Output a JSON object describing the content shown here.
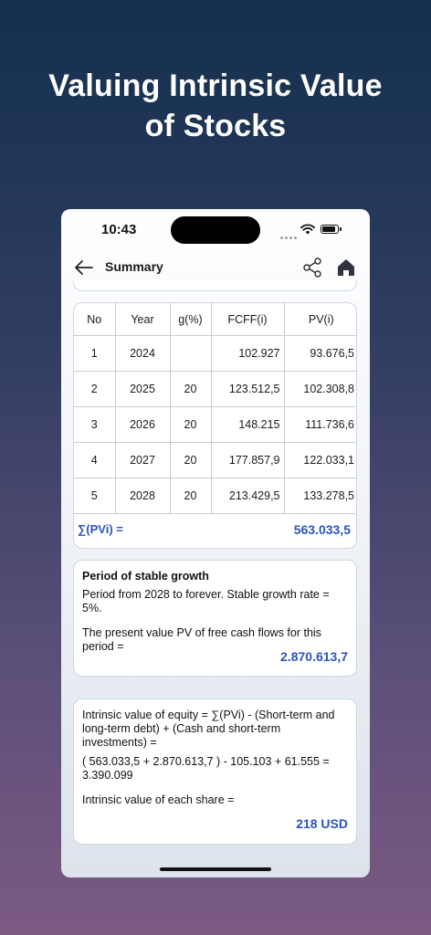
{
  "headline": {
    "line1": "Valuing Intrinsic Value",
    "line2": "of Stocks"
  },
  "status_bar": {
    "time": "10:43"
  },
  "nav": {
    "title": "Summary",
    "back_icon": "arrow-left-icon",
    "share_icon": "share-icon",
    "home_icon": "home-icon"
  },
  "table": {
    "headers": [
      "No",
      "Year",
      "g(%)",
      "FCFF(i)",
      "PV(i)"
    ],
    "rows": [
      [
        "1",
        "2024",
        "",
        "102.927",
        "93.676,5"
      ],
      [
        "2",
        "2025",
        "20",
        "123.512,5",
        "102.308,8"
      ],
      [
        "3",
        "2026",
        "20",
        "148.215",
        "111.736,6"
      ],
      [
        "4",
        "2027",
        "20",
        "177.857,9",
        "122.033,1"
      ],
      [
        "5",
        "2028",
        "20",
        "213.429,5",
        "133.278,5"
      ]
    ],
    "sum_label": "∑(PVi) =",
    "sum_value": "563.033,5"
  },
  "stable_growth": {
    "title": "Period of stable growth",
    "period_text": "Period from 2028 to forever. Stable growth rate = 5%.",
    "pv_text": "The present value PV of free cash flows for this period =",
    "pv_value": "2.870.613,7"
  },
  "equity": {
    "formula_text": "Intrinsic value of equity = ∑(PVi) - (Short-term and long-term debt) + (Cash and short-term investments) =",
    "calc_text": "( 563.033,5 + 2.870.613,7 ) - 105.103 + 61.555 = 3.390.099",
    "share_label": "Intrinsic value of each share =",
    "share_value": "218 USD"
  },
  "colors": {
    "accent": "#2a55b8",
    "bg_top": "#13304d",
    "bg_bottom": "#7b5a82"
  }
}
